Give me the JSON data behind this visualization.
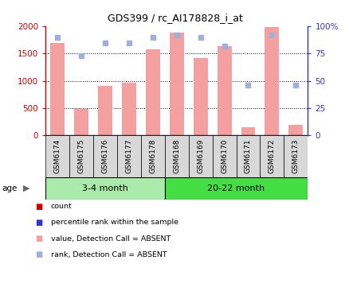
{
  "title": "GDS399 / rc_AI178828_i_at",
  "samples": [
    "GSM6174",
    "GSM6175",
    "GSM6176",
    "GSM6177",
    "GSM6178",
    "GSM6168",
    "GSM6169",
    "GSM6170",
    "GSM6171",
    "GSM6172",
    "GSM6173"
  ],
  "bar_values": [
    1700,
    480,
    910,
    960,
    1580,
    1880,
    1420,
    1630,
    155,
    1980,
    195
  ],
  "rank_values": [
    90,
    73,
    85,
    85,
    90,
    92,
    90,
    82,
    46,
    92,
    46
  ],
  "group1_label": "3-4 month",
  "group2_label": "20-22 month",
  "group1_samples": 5,
  "group2_samples": 6,
  "ylim_left": [
    0,
    2000
  ],
  "ylim_right": [
    0,
    100
  ],
  "yticks_left": [
    0,
    500,
    1000,
    1500,
    2000
  ],
  "yticks_right": [
    0,
    25,
    50,
    75,
    100
  ],
  "yticklabels_right": [
    "0",
    "25",
    "50",
    "75",
    "100%"
  ],
  "bar_color_absent": "#F4A0A0",
  "rank_color_absent": "#A0B0D8",
  "left_axis_color": "#CC0000",
  "right_axis_color": "#3333CC",
  "xtick_bg_color": "#D8D8D8",
  "group1_color": "#AAEAAA",
  "group2_color": "#44DD44",
  "legend_items": [
    {
      "label": "count",
      "color": "#CC0000"
    },
    {
      "label": "percentile rank within the sample",
      "color": "#3333CC"
    },
    {
      "label": "value, Detection Call = ABSENT",
      "color": "#F4A0A0"
    },
    {
      "label": "rank, Detection Call = ABSENT",
      "color": "#A0B0D8"
    }
  ],
  "figsize": [
    4.39,
    3.66
  ],
  "dpi": 100
}
